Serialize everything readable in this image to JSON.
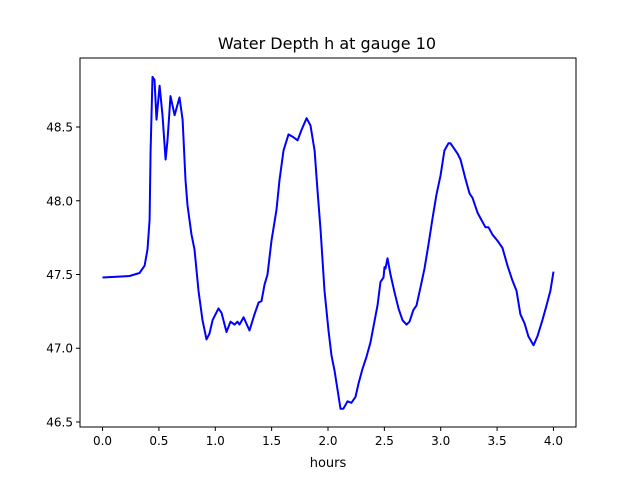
{
  "chart_data": {
    "type": "line",
    "title": "Water Depth h at gauge 10",
    "xlabel": "hours",
    "ylabel": "",
    "xlim": [
      -0.2,
      4.2
    ],
    "ylim": [
      46.466,
      48.968
    ],
    "grid": false,
    "xticks": [
      0.0,
      0.5,
      1.0,
      1.5,
      2.0,
      2.5,
      3.0,
      3.5,
      4.0
    ],
    "xtick_labels": [
      "0.0",
      "0.5",
      "1.0",
      "1.5",
      "2.0",
      "2.5",
      "3.0",
      "3.5",
      "4.0"
    ],
    "yticks": [
      46.5,
      47.0,
      47.5,
      48.0,
      48.5
    ],
    "ytick_labels": [
      "46.5",
      "47.0",
      "47.5",
      "48.0",
      "48.5"
    ],
    "series": [
      {
        "name": "h",
        "color": "#0000ff",
        "x": [
          0,
          0.239,
          0.328,
          0.373,
          0.399,
          0.417,
          0.426,
          0.443,
          0.461,
          0.479,
          0.506,
          0.532,
          0.559,
          0.576,
          0.603,
          0.639,
          0.683,
          0.71,
          0.736,
          0.754,
          0.789,
          0.816,
          0.851,
          0.887,
          0.922,
          0.949,
          0.976,
          1.002,
          1.029,
          1.055,
          1.1,
          1.135,
          1.171,
          1.197,
          1.215,
          1.251,
          1.304,
          1.348,
          1.384,
          1.41,
          1.437,
          1.463,
          1.499,
          1.543,
          1.57,
          1.605,
          1.65,
          1.694,
          1.73,
          1.765,
          1.81,
          1.845,
          1.881,
          1.907,
          1.934,
          1.969,
          2.004,
          2.031,
          2.058,
          2.084,
          2.111,
          2.137,
          2.173,
          2.208,
          2.244,
          2.271,
          2.306,
          2.341,
          2.377,
          2.412,
          2.439,
          2.466,
          2.492,
          2.501,
          2.51,
          2.528,
          2.554,
          2.59,
          2.625,
          2.661,
          2.696,
          2.723,
          2.758,
          2.785,
          2.82,
          2.856,
          2.891,
          2.927,
          2.962,
          2.998,
          3.033,
          3.069,
          3.086,
          3.113,
          3.149,
          3.175,
          3.219,
          3.255,
          3.282,
          3.326,
          3.361,
          3.397,
          3.424,
          3.459,
          3.503,
          3.548,
          3.592,
          3.636,
          3.672,
          3.707,
          3.743,
          3.778,
          3.823,
          3.858,
          3.902,
          3.938,
          3.973,
          4.0
        ],
        "y": [
          47.48,
          47.49,
          47.51,
          47.56,
          47.67,
          47.87,
          48.34,
          48.84,
          48.82,
          48.55,
          48.78,
          48.58,
          48.28,
          48.41,
          48.71,
          48.58,
          48.7,
          48.55,
          48.14,
          47.97,
          47.77,
          47.67,
          47.39,
          47.19,
          47.06,
          47.1,
          47.19,
          47.23,
          47.27,
          47.24,
          47.11,
          47.18,
          47.16,
          47.18,
          47.16,
          47.21,
          47.12,
          47.23,
          47.31,
          47.32,
          47.43,
          47.5,
          47.73,
          47.94,
          48.14,
          48.34,
          48.45,
          48.43,
          48.41,
          48.48,
          48.56,
          48.51,
          48.34,
          48.07,
          47.8,
          47.39,
          47.12,
          46.95,
          46.85,
          46.72,
          46.59,
          46.59,
          46.64,
          46.63,
          46.67,
          46.76,
          46.86,
          46.94,
          47.04,
          47.18,
          47.29,
          47.45,
          47.48,
          47.55,
          47.54,
          47.61,
          47.5,
          47.38,
          47.27,
          47.19,
          47.16,
          47.18,
          47.26,
          47.29,
          47.41,
          47.54,
          47.7,
          47.88,
          48.04,
          48.17,
          48.34,
          48.39,
          48.39,
          48.36,
          48.32,
          48.28,
          48.15,
          48.05,
          48.02,
          47.92,
          47.87,
          47.82,
          47.82,
          47.77,
          47.73,
          47.68,
          47.56,
          47.46,
          47.39,
          47.23,
          47.17,
          47.08,
          47.02,
          47.08,
          47.19,
          47.29,
          47.39,
          47.52
        ]
      }
    ]
  }
}
